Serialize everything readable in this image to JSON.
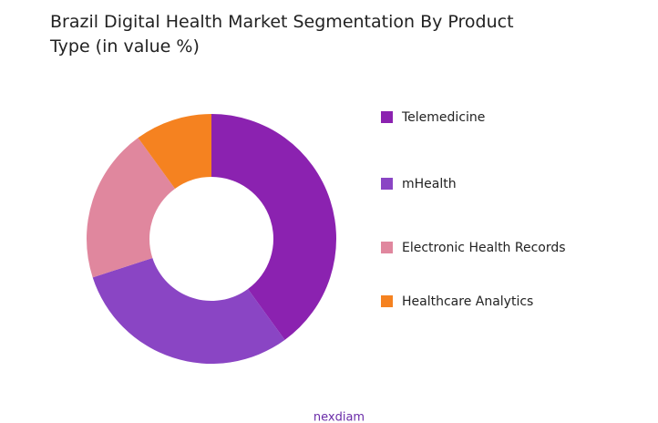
{
  "chart_data": {
    "type": "donut",
    "title": "Brazil Digital Health Market Segmentation By Product Type (in value %)",
    "categories": [
      "Telemedicine",
      "mHealth",
      "Electronic Health Records",
      "Healthcare Analytics"
    ],
    "values": [
      40,
      30,
      20,
      10
    ],
    "colors": [
      "#8b22b0",
      "#8a45c4",
      "#e0879e",
      "#f58220"
    ],
    "legend": "right"
  },
  "logo_text": "nexdiam"
}
